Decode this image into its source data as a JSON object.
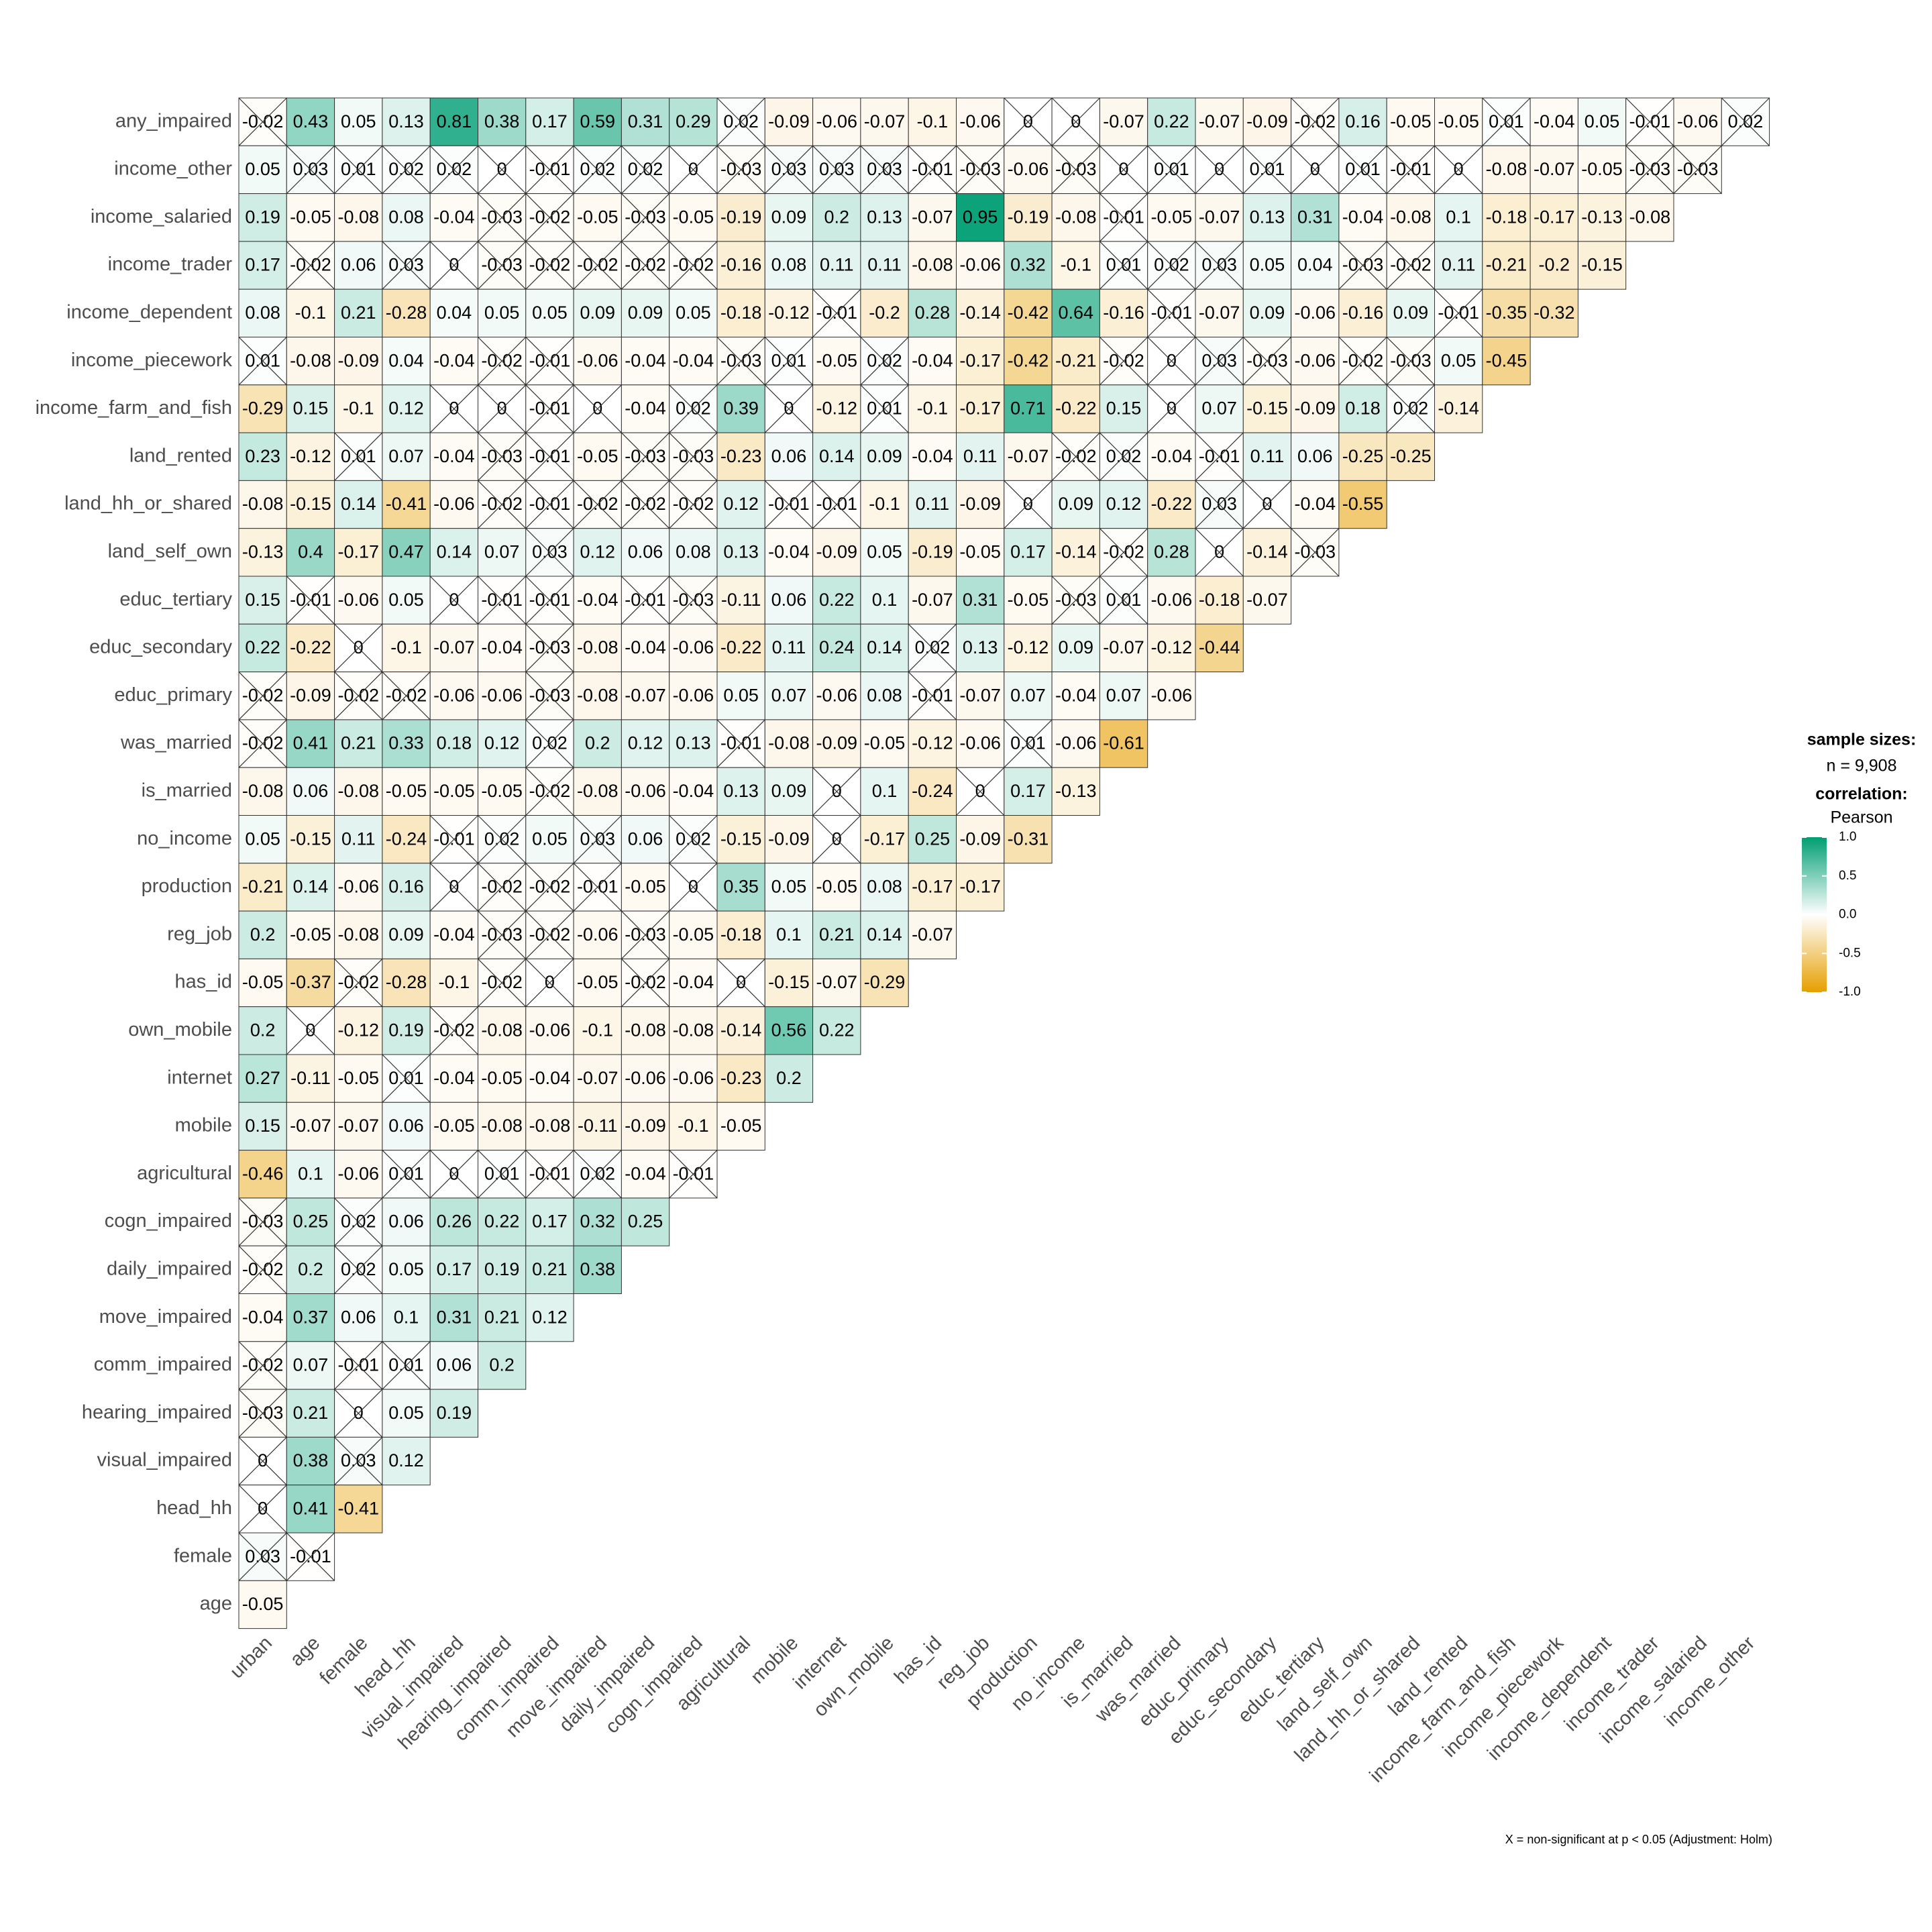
{
  "chart_data": {
    "type": "heatmap",
    "x_categories": [
      "urban",
      "age",
      "female",
      "head_hh",
      "visual_impaired",
      "hearing_impaired",
      "comm_impaired",
      "move_impaired",
      "daily_impaired",
      "cogn_impaired",
      "agricultural",
      "mobile",
      "internet",
      "own_mobile",
      "has_id",
      "reg_job",
      "production",
      "no_income",
      "is_married",
      "was_married",
      "educ_primary",
      "educ_secondary",
      "educ_tertiary",
      "land_self_own",
      "land_hh_or_shared",
      "land_rented",
      "income_farm_and_fish",
      "income_piecework",
      "income_dependent",
      "income_trader",
      "income_salaried",
      "income_other"
    ],
    "y_categories": [
      "any_impaired",
      "income_other",
      "income_salaried",
      "income_trader",
      "income_dependent",
      "income_piecework",
      "income_farm_and_fish",
      "land_rented",
      "land_hh_or_shared",
      "land_self_own",
      "educ_tertiary",
      "educ_secondary",
      "educ_primary",
      "was_married",
      "is_married",
      "no_income",
      "production",
      "reg_job",
      "has_id",
      "own_mobile",
      "internet",
      "mobile",
      "agricultural",
      "cogn_impaired",
      "daily_impaired",
      "move_impaired",
      "comm_impaired",
      "hearing_impaired",
      "visual_impaired",
      "head_hh",
      "female",
      "age"
    ],
    "values": [
      [
        -0.02,
        0.43,
        0.05,
        0.13,
        0.81,
        0.38,
        0.17,
        0.59,
        0.31,
        0.29,
        0.02,
        -0.09,
        -0.06,
        -0.07,
        -0.1,
        -0.06,
        0,
        0,
        -0.07,
        0.22,
        -0.07,
        -0.09,
        -0.02,
        0.16,
        -0.05,
        -0.05,
        0.01,
        -0.04,
        0.05,
        -0.01,
        -0.06,
        0.02
      ],
      [
        0.05,
        0.03,
        0.01,
        0.02,
        0.02,
        0,
        -0.01,
        0.02,
        0.02,
        0,
        -0.03,
        0.03,
        0.03,
        0.03,
        -0.01,
        -0.03,
        -0.06,
        -0.03,
        0,
        0.01,
        0,
        0.01,
        0,
        0.01,
        -0.01,
        0,
        -0.08,
        -0.07,
        -0.05,
        -0.03,
        -0.03
      ],
      [
        0.19,
        -0.05,
        -0.08,
        0.08,
        -0.04,
        -0.03,
        -0.02,
        -0.05,
        -0.03,
        -0.05,
        -0.19,
        0.09,
        0.2,
        0.13,
        -0.07,
        0.95,
        -0.19,
        -0.08,
        -0.01,
        -0.05,
        -0.07,
        0.13,
        0.31,
        -0.04,
        -0.08,
        0.1,
        -0.18,
        -0.17,
        -0.13,
        -0.08
      ],
      [
        0.17,
        -0.02,
        0.06,
        0.03,
        0,
        -0.03,
        -0.02,
        -0.02,
        -0.02,
        -0.02,
        -0.16,
        0.08,
        0.11,
        0.11,
        -0.08,
        -0.06,
        0.32,
        -0.1,
        0.01,
        0.02,
        0.03,
        0.05,
        0.04,
        -0.03,
        -0.02,
        0.11,
        -0.21,
        -0.2,
        -0.15
      ],
      [
        0.08,
        -0.1,
        0.21,
        -0.28,
        0.04,
        0.05,
        0.05,
        0.09,
        0.09,
        0.05,
        -0.18,
        -0.12,
        -0.01,
        -0.2,
        0.28,
        -0.14,
        -0.42,
        0.64,
        -0.16,
        -0.01,
        -0.07,
        0.09,
        -0.06,
        -0.16,
        0.09,
        -0.01,
        -0.35,
        -0.32
      ],
      [
        0.01,
        -0.08,
        -0.09,
        0.04,
        -0.04,
        -0.02,
        -0.01,
        -0.06,
        -0.04,
        -0.04,
        -0.03,
        0.01,
        -0.05,
        0.02,
        -0.04,
        -0.17,
        -0.42,
        -0.21,
        -0.02,
        0,
        0.03,
        -0.03,
        -0.06,
        -0.02,
        -0.03,
        0.05,
        -0.45
      ],
      [
        -0.29,
        0.15,
        -0.1,
        0.12,
        0,
        0,
        -0.01,
        0,
        -0.04,
        0.02,
        0.39,
        0,
        -0.12,
        0.01,
        -0.1,
        -0.17,
        0.71,
        -0.22,
        0.15,
        0,
        0.07,
        -0.15,
        -0.09,
        0.18,
        0.02,
        -0.14
      ],
      [
        0.23,
        -0.12,
        0.01,
        0.07,
        -0.04,
        -0.03,
        -0.01,
        -0.05,
        -0.03,
        -0.03,
        -0.23,
        0.06,
        0.14,
        0.09,
        -0.04,
        0.11,
        -0.07,
        -0.02,
        0.02,
        -0.04,
        -0.01,
        0.11,
        0.06,
        -0.25,
        -0.25
      ],
      [
        -0.08,
        -0.15,
        0.14,
        -0.41,
        -0.06,
        -0.02,
        -0.01,
        -0.02,
        -0.02,
        -0.02,
        0.12,
        -0.01,
        -0.01,
        -0.1,
        0.11,
        -0.09,
        0,
        0.09,
        0.12,
        -0.22,
        0.03,
        0,
        -0.04,
        -0.55
      ],
      [
        -0.13,
        0.4,
        -0.17,
        0.47,
        0.14,
        0.07,
        0.03,
        0.12,
        0.06,
        0.08,
        0.13,
        -0.04,
        -0.09,
        0.05,
        -0.19,
        -0.05,
        0.17,
        -0.14,
        -0.02,
        0.28,
        0,
        -0.14,
        -0.03
      ],
      [
        0.15,
        -0.01,
        -0.06,
        0.05,
        0,
        -0.01,
        -0.01,
        -0.04,
        -0.01,
        -0.03,
        -0.11,
        0.06,
        0.22,
        0.1,
        -0.07,
        0.31,
        -0.05,
        -0.03,
        0.01,
        -0.06,
        -0.18,
        -0.07
      ],
      [
        0.22,
        -0.22,
        0,
        -0.1,
        -0.07,
        -0.04,
        -0.03,
        -0.08,
        -0.04,
        -0.06,
        -0.22,
        0.11,
        0.24,
        0.14,
        0.02,
        0.13,
        -0.12,
        0.09,
        -0.07,
        -0.12,
        -0.44
      ],
      [
        -0.02,
        -0.09,
        -0.02,
        -0.02,
        -0.06,
        -0.06,
        -0.03,
        -0.08,
        -0.07,
        -0.06,
        0.05,
        0.07,
        -0.06,
        0.08,
        -0.01,
        -0.07,
        0.07,
        -0.04,
        0.07,
        -0.06
      ],
      [
        -0.02,
        0.41,
        0.21,
        0.33,
        0.18,
        0.12,
        0.02,
        0.2,
        0.12,
        0.13,
        -0.01,
        -0.08,
        -0.09,
        -0.05,
        -0.12,
        -0.06,
        0.01,
        -0.06,
        -0.61
      ],
      [
        -0.08,
        0.06,
        -0.08,
        -0.05,
        -0.05,
        -0.05,
        -0.02,
        -0.08,
        -0.06,
        -0.04,
        0.13,
        0.09,
        0,
        0.1,
        -0.24,
        0,
        0.17,
        -0.13
      ],
      [
        0.05,
        -0.15,
        0.11,
        -0.24,
        -0.01,
        0.02,
        0.05,
        0.03,
        0.06,
        0.02,
        -0.15,
        -0.09,
        0,
        -0.17,
        0.25,
        -0.09,
        -0.31
      ],
      [
        -0.21,
        0.14,
        -0.06,
        0.16,
        0,
        -0.02,
        -0.02,
        -0.01,
        -0.05,
        0,
        0.35,
        0.05,
        -0.05,
        0.08,
        -0.17,
        -0.17
      ],
      [
        0.2,
        -0.05,
        -0.08,
        0.09,
        -0.04,
        -0.03,
        -0.02,
        -0.06,
        -0.03,
        -0.05,
        -0.18,
        0.1,
        0.21,
        0.14,
        -0.07
      ],
      [
        -0.05,
        -0.37,
        -0.02,
        -0.28,
        -0.1,
        -0.02,
        0,
        -0.05,
        -0.02,
        -0.04,
        0,
        -0.15,
        -0.07,
        -0.29
      ],
      [
        0.2,
        0,
        -0.12,
        0.19,
        -0.02,
        -0.08,
        -0.06,
        -0.1,
        -0.08,
        -0.08,
        -0.14,
        0.56,
        0.22
      ],
      [
        0.27,
        -0.11,
        -0.05,
        0.01,
        -0.04,
        -0.05,
        -0.04,
        -0.07,
        -0.06,
        -0.06,
        -0.23,
        0.2
      ],
      [
        0.15,
        -0.07,
        -0.07,
        0.06,
        -0.05,
        -0.08,
        -0.08,
        -0.11,
        -0.09,
        -0.1,
        -0.05
      ],
      [
        -0.46,
        0.1,
        -0.06,
        0.01,
        0,
        0.01,
        -0.01,
        0.02,
        -0.04,
        -0.01
      ],
      [
        -0.03,
        0.25,
        0.02,
        0.06,
        0.26,
        0.22,
        0.17,
        0.32,
        0.25
      ],
      [
        -0.02,
        0.2,
        0.02,
        0.05,
        0.17,
        0.19,
        0.21,
        0.38
      ],
      [
        -0.04,
        0.37,
        0.06,
        0.1,
        0.31,
        0.21,
        0.12
      ],
      [
        -0.02,
        0.07,
        -0.01,
        0.01,
        0.06,
        0.2
      ],
      [
        -0.03,
        0.21,
        0,
        0.05,
        0.19
      ],
      [
        0,
        0.38,
        0.03,
        0.12
      ],
      [
        0,
        0.41,
        -0.41
      ],
      [
        0.03,
        -0.01
      ],
      [
        -0.05
      ]
    ],
    "nonsig": [
      [
        0,
        10,
        16,
        17,
        22,
        26,
        29,
        31
      ],
      [
        1,
        2,
        3,
        4,
        5,
        6,
        7,
        8,
        9,
        10,
        11,
        12,
        13,
        14,
        15,
        17,
        18,
        19,
        20,
        21,
        22,
        23,
        24,
        25,
        29,
        30
      ],
      [
        5,
        6,
        8,
        18
      ],
      [
        1,
        3,
        4,
        5,
        6,
        7,
        8,
        9,
        18,
        19,
        20,
        23,
        24
      ],
      [
        12,
        19,
        25
      ],
      [
        0,
        5,
        6,
        10,
        11,
        13,
        18,
        19,
        20,
        21,
        23,
        24
      ],
      [
        4,
        5,
        6,
        7,
        9,
        11,
        13,
        19,
        24
      ],
      [
        2,
        5,
        6,
        8,
        9,
        17,
        18,
        20
      ],
      [
        5,
        6,
        7,
        8,
        9,
        11,
        12,
        16,
        20,
        21
      ],
      [
        6,
        18,
        20,
        22
      ],
      [
        1,
        4,
        5,
        6,
        8,
        9,
        17,
        18
      ],
      [
        2,
        6,
        14
      ],
      [
        0,
        2,
        3,
        6,
        14
      ],
      [
        0,
        6,
        10,
        16
      ],
      [
        6,
        12,
        15
      ],
      [
        4,
        5,
        7,
        9,
        12
      ],
      [
        4,
        5,
        6,
        7,
        9
      ],
      [
        5,
        6,
        8
      ],
      [
        2,
        5,
        6,
        8,
        10
      ],
      [
        1,
        4
      ],
      [
        3
      ],
      [],
      [
        3,
        4,
        5,
        6,
        7,
        9
      ],
      [
        0,
        2
      ],
      [
        0,
        2
      ],
      [],
      [
        0,
        2,
        3
      ],
      [
        0,
        2
      ],
      [
        0,
        2
      ],
      [
        0
      ],
      [
        0,
        1
      ],
      []
    ],
    "colorscale": [
      "#E69F00",
      "#FFFFFF",
      "#009E73"
    ],
    "clim": [
      -1,
      1
    ],
    "cticks": [
      {
        "value": 1,
        "label": "1.0"
      },
      {
        "value": 0.5,
        "label": "0.5"
      },
      {
        "value": 0,
        "label": "0.0"
      },
      {
        "value": -0.5,
        "label": "-0.5"
      },
      {
        "value": -1,
        "label": "-1.0"
      }
    ],
    "legend_title_1": "sample sizes:",
    "legend_sample_size": "n = 9,908",
    "legend_title_2": "correlation:",
    "legend_method": "Pearson",
    "caption": "X = non-significant at p < 0.05 (Adjustment: Holm)"
  }
}
